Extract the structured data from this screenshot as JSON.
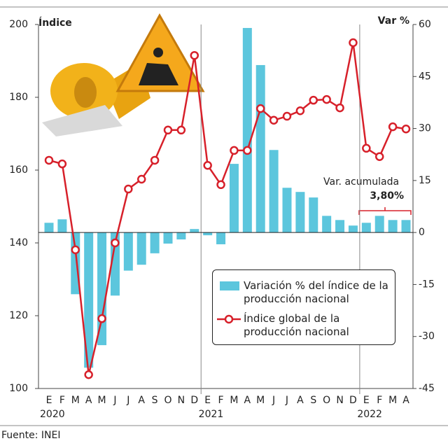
{
  "chart_data": {
    "type": "bar_line",
    "y_axis_title": "Índice",
    "y2_axis_title": "Var %",
    "categories": [
      "E",
      "F",
      "M",
      "A",
      "M",
      "J",
      "J",
      "A",
      "S",
      "O",
      "N",
      "D",
      "E",
      "F",
      "M",
      "A",
      "M",
      "J",
      "J",
      "A",
      "S",
      "O",
      "N",
      "D",
      "E",
      "F",
      "M",
      "A"
    ],
    "years": [
      "2020",
      "2021",
      "2022"
    ],
    "ylim": [
      100,
      200
    ],
    "yticks": [
      100,
      120,
      140,
      160,
      180,
      200
    ],
    "y2lim": [
      -45,
      60
    ],
    "y2ticks": [
      -45,
      -30,
      -15,
      0,
      15,
      30,
      45,
      60
    ],
    "series": [
      {
        "name": "Variación % del índice de la producción nacional",
        "type": "bar",
        "axis": "y2",
        "color": "#5cc6dd",
        "values": [
          2.8,
          3.8,
          -17.8,
          -39,
          -32.5,
          -18.2,
          -11,
          -9.3,
          -6,
          -3.2,
          -2,
          1,
          -0.8,
          -3.4,
          19.8,
          59,
          48.3,
          23.8,
          12.9,
          11.7,
          10.1,
          4.8,
          3.6,
          2,
          2.8,
          4.8,
          3.6,
          3.6
        ]
      },
      {
        "name": "Índice global de la producción nacional",
        "type": "line",
        "axis": "y",
        "color": "#d7202a",
        "values": [
          162.7,
          161.7,
          138.1,
          103.8,
          119.2,
          140,
          154.8,
          157.5,
          162.7,
          171,
          171,
          191.5,
          161.3,
          156,
          165.4,
          165.4,
          176.9,
          173.7,
          174.8,
          176.3,
          179.2,
          179.4,
          177.1,
          195,
          166,
          163.7,
          171.9,
          171.3
        ]
      }
    ],
    "annotations": [
      "Var. acumulada",
      "3,80%"
    ],
    "source": "Fuente: INEI"
  }
}
